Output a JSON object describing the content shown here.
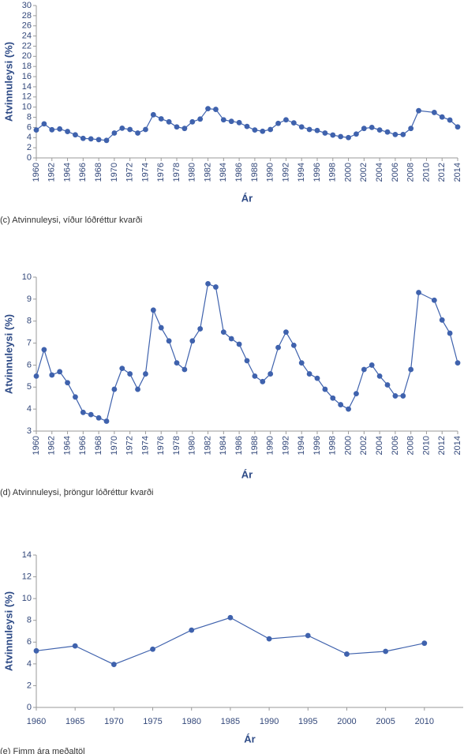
{
  "chart_data": [
    {
      "type": "line",
      "caption": "(c) Atvinnuleysi, víður lóðréttur kvarði",
      "xlabel": "Ár",
      "ylabel": "Atvinnuleysi (%)",
      "color": "#3f62ad",
      "x": [
        1960,
        1961,
        1962,
        1963,
        1964,
        1965,
        1966,
        1967,
        1968,
        1969,
        1970,
        1971,
        1972,
        1973,
        1974,
        1975,
        1976,
        1977,
        1978,
        1979,
        1980,
        1981,
        1982,
        1983,
        1984,
        1985,
        1986,
        1987,
        1988,
        1989,
        1990,
        1991,
        1992,
        1993,
        1994,
        1995,
        1996,
        1997,
        1998,
        1999,
        2000,
        2001,
        2002,
        2003,
        2004,
        2005,
        2006,
        2007,
        2008,
        2009,
        2011,
        2012,
        2013,
        2014
      ],
      "values": [
        5.5,
        6.7,
        5.55,
        5.7,
        5.2,
        4.55,
        3.85,
        3.75,
        3.6,
        3.45,
        4.9,
        5.85,
        5.6,
        4.9,
        5.6,
        8.5,
        7.7,
        7.1,
        6.1,
        5.8,
        7.1,
        7.65,
        9.7,
        9.55,
        7.5,
        7.2,
        6.95,
        6.2,
        5.5,
        5.25,
        5.6,
        6.8,
        7.5,
        6.9,
        6.1,
        5.6,
        5.4,
        4.9,
        4.5,
        4.2,
        4.0,
        4.7,
        5.8,
        6.0,
        5.5,
        5.1,
        4.6,
        4.6,
        5.8,
        9.3,
        8.95,
        8.05,
        7.45,
        6.1
      ],
      "xlim": [
        1960,
        2014
      ],
      "xticks": [
        1960,
        1962,
        1964,
        1966,
        1968,
        1970,
        1972,
        1974,
        1976,
        1978,
        1980,
        1982,
        1984,
        1986,
        1988,
        1990,
        1992,
        1994,
        1996,
        1998,
        2000,
        2002,
        2004,
        2006,
        2008,
        2010,
        2012,
        2014
      ],
      "ylim": [
        0,
        30
      ],
      "yticks": [
        0,
        2,
        4,
        6,
        8,
        10,
        12,
        14,
        16,
        18,
        20,
        22,
        24,
        26,
        28,
        30
      ]
    },
    {
      "type": "line",
      "caption": "(d) Atvinnuleysi, þröngur lóðréttur kvarði",
      "xlabel": "Ár",
      "ylabel": "Atvinnuleysi (%)",
      "color": "#3f62ad",
      "x": [
        1960,
        1961,
        1962,
        1963,
        1964,
        1965,
        1966,
        1967,
        1968,
        1969,
        1970,
        1971,
        1972,
        1973,
        1974,
        1975,
        1976,
        1977,
        1978,
        1979,
        1980,
        1981,
        1982,
        1983,
        1984,
        1985,
        1986,
        1987,
        1988,
        1989,
        1990,
        1991,
        1992,
        1993,
        1994,
        1995,
        1996,
        1997,
        1998,
        1999,
        2000,
        2001,
        2002,
        2003,
        2004,
        2005,
        2006,
        2007,
        2008,
        2009,
        2011,
        2012,
        2013,
        2014
      ],
      "values": [
        5.5,
        6.7,
        5.55,
        5.7,
        5.2,
        4.55,
        3.85,
        3.75,
        3.6,
        3.45,
        4.9,
        5.85,
        5.6,
        4.9,
        5.6,
        8.5,
        7.7,
        7.1,
        6.1,
        5.8,
        7.1,
        7.65,
        9.7,
        9.55,
        7.5,
        7.2,
        6.95,
        6.2,
        5.5,
        5.25,
        5.6,
        6.8,
        7.5,
        6.9,
        6.1,
        5.6,
        5.4,
        4.9,
        4.5,
        4.2,
        4.0,
        4.7,
        5.8,
        6.0,
        5.5,
        5.1,
        4.6,
        4.6,
        5.8,
        9.3,
        8.95,
        8.05,
        7.45,
        6.1
      ],
      "xlim": [
        1960,
        2014
      ],
      "xticks": [
        1960,
        1962,
        1964,
        1966,
        1968,
        1970,
        1972,
        1974,
        1976,
        1978,
        1980,
        1982,
        1984,
        1986,
        1988,
        1990,
        1992,
        1994,
        1996,
        1998,
        2000,
        2002,
        2004,
        2006,
        2008,
        2010,
        2012,
        2014
      ],
      "ylim": [
        3,
        10
      ],
      "yticks": [
        3,
        4,
        5,
        6,
        7,
        8,
        9,
        10
      ]
    },
    {
      "type": "line",
      "caption": "(e) Fimm ára meðaltöl",
      "xlabel": "Ár",
      "ylabel": "Atvinnuleysi (%)",
      "color": "#3f62ad",
      "x": [
        1960,
        1965,
        1970,
        1975,
        1980,
        1985,
        1990,
        1995,
        2000,
        2005,
        2010
      ],
      "values": [
        5.2,
        5.65,
        3.95,
        5.35,
        7.1,
        8.25,
        6.3,
        6.6,
        4.9,
        5.15,
        5.9
      ],
      "xlim": [
        1960,
        2015
      ],
      "xticks": [
        1960,
        1965,
        1970,
        1975,
        1980,
        1985,
        1990,
        1995,
        2000,
        2005,
        2010
      ],
      "ylim": [
        0,
        14
      ],
      "yticks": [
        0,
        2,
        4,
        6,
        8,
        10,
        12,
        14
      ]
    }
  ]
}
